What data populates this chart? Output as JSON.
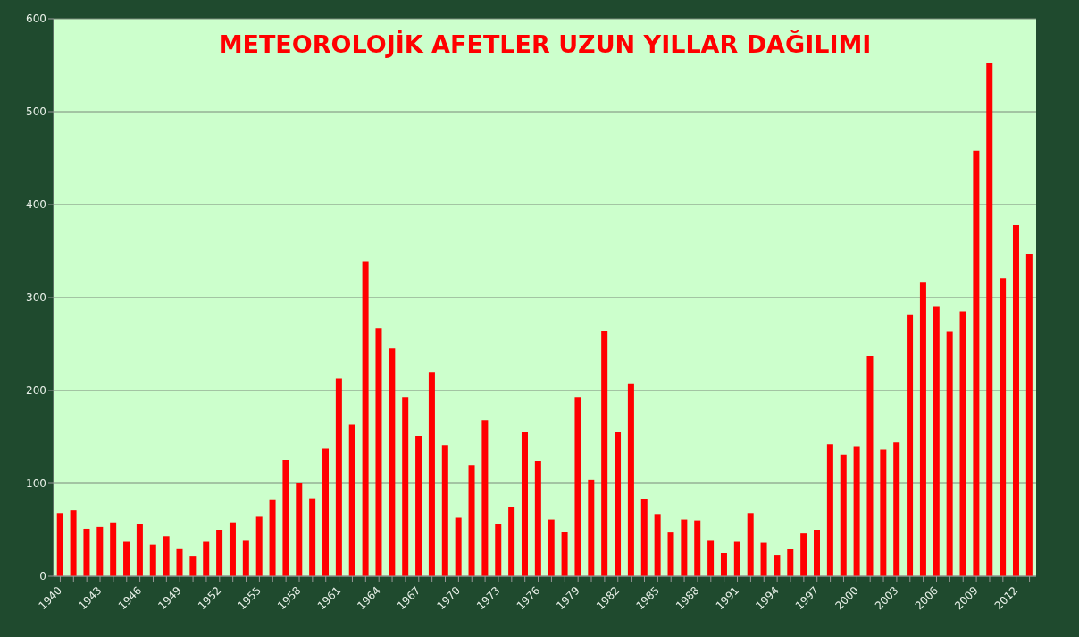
{
  "chart_data": {
    "type": "bar",
    "title": "METEOROLOJİK AFETLER UZUN YILLAR DAĞILIMI",
    "categories": [
      "1940",
      null,
      null,
      "1943",
      null,
      null,
      "1946",
      null,
      null,
      "1949",
      null,
      null,
      "1952",
      null,
      null,
      "1955",
      null,
      null,
      "1958",
      null,
      null,
      "1961",
      null,
      null,
      "1964",
      null,
      null,
      "1967",
      null,
      null,
      "1970",
      null,
      null,
      "1973",
      null,
      null,
      "1976",
      null,
      null,
      "1979",
      null,
      null,
      "1982",
      null,
      null,
      "1985",
      null,
      null,
      "1988",
      null,
      null,
      "1991",
      null,
      null,
      "1994",
      null,
      null,
      "1997",
      null,
      null,
      "2000",
      null,
      null,
      "2003",
      null,
      null,
      "2006",
      null,
      null,
      "2009",
      null,
      null,
      "2012",
      null
    ],
    "values": [
      68,
      71,
      51,
      53,
      58,
      37,
      56,
      34,
      43,
      30,
      22,
      37,
      50,
      58,
      39,
      64,
      82,
      125,
      100,
      84,
      137,
      213,
      163,
      339,
      267,
      245,
      193,
      151,
      220,
      141,
      63,
      119,
      168,
      56,
      75,
      155,
      124,
      61,
      48,
      193,
      104,
      264,
      155,
      207,
      83,
      67,
      47,
      61,
      60,
      39,
      25,
      37,
      68,
      36,
      23,
      29,
      46,
      50,
      142,
      131,
      140,
      237,
      136,
      144,
      281,
      316,
      290,
      263,
      285,
      458,
      553,
      321,
      378,
      347
    ],
    "color": "#ff0000",
    "ylim": [
      0,
      600
    ],
    "yticks": [
      0,
      100,
      200,
      300,
      400,
      500,
      600
    ],
    "grid": "y"
  }
}
